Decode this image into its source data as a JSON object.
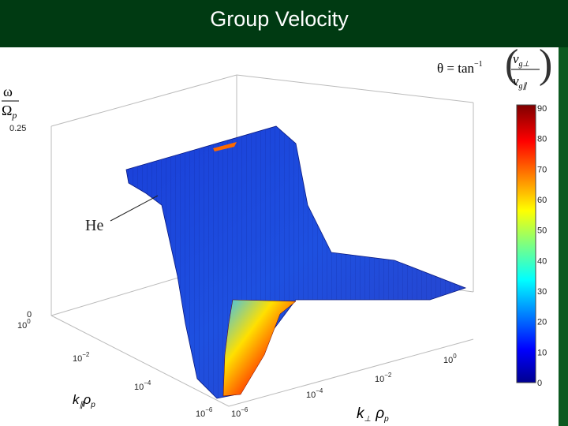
{
  "header": {
    "title": "Group Velocity"
  },
  "plot": {
    "formula": {
      "lhs": "θ = tan",
      "lhs_sup": "−1",
      "num": "v",
      "num_sub": "g⊥",
      "den": "v",
      "den_sub": "g∥"
    },
    "z_label": {
      "num": "ω",
      "den": "Ω",
      "den_sub": "p"
    },
    "z_ticks": [
      "0.25",
      "0"
    ],
    "annotation": "He",
    "k_par_label": {
      "k": "k",
      "k_sub": "∥",
      "rho": "ρ",
      "rho_sub": "p"
    },
    "k_par_ticks": [
      {
        "base": "10",
        "exp": "0"
      },
      {
        "base": "10",
        "exp": "−2"
      },
      {
        "base": "10",
        "exp": "−4"
      },
      {
        "base": "10",
        "exp": "−6"
      }
    ],
    "k_perp_label": {
      "k": "k",
      "k_sub": "⊥",
      "rho": "ρ",
      "rho_sub": "p"
    },
    "k_perp_ticks": [
      {
        "base": "10",
        "exp": "−6"
      },
      {
        "base": "10",
        "exp": "−4"
      },
      {
        "base": "10",
        "exp": "−2"
      },
      {
        "base": "10",
        "exp": "0"
      }
    ],
    "colorbar_ticks": [
      "90",
      "80",
      "70",
      "60",
      "50",
      "40",
      "30",
      "20",
      "10",
      "0"
    ]
  }
}
